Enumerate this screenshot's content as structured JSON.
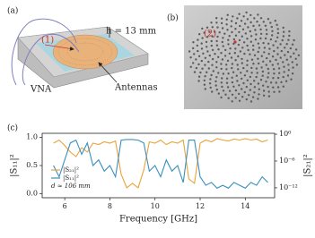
{
  "figure": {
    "a_label": "(a)",
    "height_label": "h = 13 mm",
    "marker_1": "(1)",
    "vna": "VNA",
    "antennas": "Antennas",
    "b_label": "(b)",
    "marker_2": "(2)",
    "c_label": "(c)"
  },
  "chart_data": {
    "type": "line",
    "xlabel": "Frequency [GHz]",
    "ylabel": "|S₁₁|²",
    "y2label": "|S₂₁|²",
    "annotation": "d ≈ 106 mm",
    "x": [
      5.5,
      5.75,
      6,
      6.25,
      6.5,
      6.75,
      7,
      7.25,
      7.5,
      7.75,
      8,
      8.25,
      8.5,
      8.75,
      9,
      9.25,
      9.5,
      9.75,
      10,
      10.25,
      10.5,
      10.75,
      11,
      11.25,
      11.5,
      11.75,
      12,
      12.25,
      12.5,
      12.75,
      13,
      13.25,
      13.5,
      13.75,
      14,
      14.25,
      14.5,
      14.75,
      15
    ],
    "series": [
      {
        "name": "|S₂₁|²",
        "color": "#e8a33a",
        "axis": "y2",
        "values": [
          0.01,
          0.05,
          0.003,
          0.0001,
          1e-05,
          0.001,
          0.0001,
          0.01,
          0.005,
          0.02,
          0.01,
          0.03,
          1e-09,
          1e-12,
          1e-11,
          1e-12,
          1e-08,
          0.02,
          0.01,
          0.05,
          0.005,
          0.02,
          0.01,
          0.05,
          1e-10,
          1e-11,
          0.01,
          0.05,
          0.02,
          0.1,
          0.05,
          0.03,
          0.08,
          0.05,
          0.1,
          0.05,
          0.08,
          0.02,
          0.05
        ]
      },
      {
        "name": "|S₁₁|²",
        "color": "#3a8fc0",
        "values": [
          0.5,
          0.3,
          0.6,
          0.9,
          0.95,
          0.7,
          0.9,
          0.5,
          0.6,
          0.4,
          0.5,
          0.3,
          0.95,
          0.96,
          0.96,
          0.95,
          0.9,
          0.4,
          0.5,
          0.3,
          0.6,
          0.4,
          0.5,
          0.2,
          0.95,
          0.95,
          0.3,
          0.15,
          0.2,
          0.1,
          0.15,
          0.1,
          0.2,
          0.15,
          0.1,
          0.2,
          0.15,
          0.3,
          0.2
        ]
      }
    ],
    "xlim": [
      5,
      15.3
    ],
    "xticks": [
      6,
      8,
      10,
      12,
      14
    ],
    "ylim": [
      -0.07,
      1.07
    ],
    "yticks": [
      {
        "value": 0,
        "label": "0.0"
      },
      {
        "value": 0.5,
        "label": "0.5"
      },
      {
        "value": 1,
        "label": "1.0"
      }
    ],
    "y2lim": [
      6e-15,
      1.6
    ],
    "y2scale": "log",
    "y2ticks": [
      {
        "value": 1,
        "label": "10⁰"
      },
      {
        "value": 1e-06,
        "label": "10⁻⁶"
      },
      {
        "value": 1e-12,
        "label": "10⁻¹²"
      }
    ]
  }
}
